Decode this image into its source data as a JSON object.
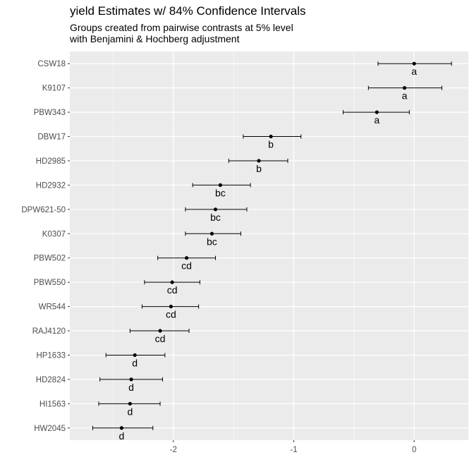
{
  "chart_data": {
    "type": "scatter",
    "title": "yield Estimates w/ 84% Confidence Intervals",
    "subtitle_lines": [
      "Groups created from pairwise contrasts at 5% level",
      "with Benjamini & Hochberg adjustment"
    ],
    "xlabel": "",
    "ylabel": "",
    "xlim": [
      -2.86,
      0.45
    ],
    "x_ticks": [
      -2,
      -1,
      0
    ],
    "x_tick_labels": [
      "-2",
      "-1",
      "0"
    ],
    "grid": true,
    "points": [
      {
        "label": "CSW18",
        "estimate": 0.0,
        "lower": -0.3,
        "upper": 0.31,
        "group": "a"
      },
      {
        "label": "K9107",
        "estimate": -0.08,
        "lower": -0.38,
        "upper": 0.23,
        "group": "a"
      },
      {
        "label": "PBW343",
        "estimate": -0.31,
        "lower": -0.59,
        "upper": -0.04,
        "group": "a"
      },
      {
        "label": "DBW17",
        "estimate": -1.19,
        "lower": -1.42,
        "upper": -0.94,
        "group": "b"
      },
      {
        "label": "HD2985",
        "estimate": -1.29,
        "lower": -1.54,
        "upper": -1.05,
        "group": "b"
      },
      {
        "label": "HD2932",
        "estimate": -1.61,
        "lower": -1.84,
        "upper": -1.36,
        "group": "bc"
      },
      {
        "label": "DPW621-50",
        "estimate": -1.65,
        "lower": -1.9,
        "upper": -1.39,
        "group": "bc"
      },
      {
        "label": "K0307",
        "estimate": -1.68,
        "lower": -1.9,
        "upper": -1.44,
        "group": "bc"
      },
      {
        "label": "PBW502",
        "estimate": -1.89,
        "lower": -2.13,
        "upper": -1.65,
        "group": "cd"
      },
      {
        "label": "PBW550",
        "estimate": -2.01,
        "lower": -2.24,
        "upper": -1.78,
        "group": "cd"
      },
      {
        "label": "WR544",
        "estimate": -2.02,
        "lower": -2.26,
        "upper": -1.79,
        "group": "cd"
      },
      {
        "label": "RAJ4120",
        "estimate": -2.11,
        "lower": -2.36,
        "upper": -1.87,
        "group": "cd"
      },
      {
        "label": "HP1633",
        "estimate": -2.32,
        "lower": -2.56,
        "upper": -2.07,
        "group": "d"
      },
      {
        "label": "HD2824",
        "estimate": -2.35,
        "lower": -2.61,
        "upper": -2.09,
        "group": "d"
      },
      {
        "label": "HI1563",
        "estimate": -2.36,
        "lower": -2.62,
        "upper": -2.11,
        "group": "d"
      },
      {
        "label": "HW2045",
        "estimate": -2.43,
        "lower": -2.67,
        "upper": -2.17,
        "group": "d"
      }
    ],
    "colors": {
      "panel_background": "#ebebeb",
      "gridline": "#ffffff",
      "point": "#000000",
      "errorbar": "#000000",
      "tick_text": "#4d4d4d"
    }
  }
}
